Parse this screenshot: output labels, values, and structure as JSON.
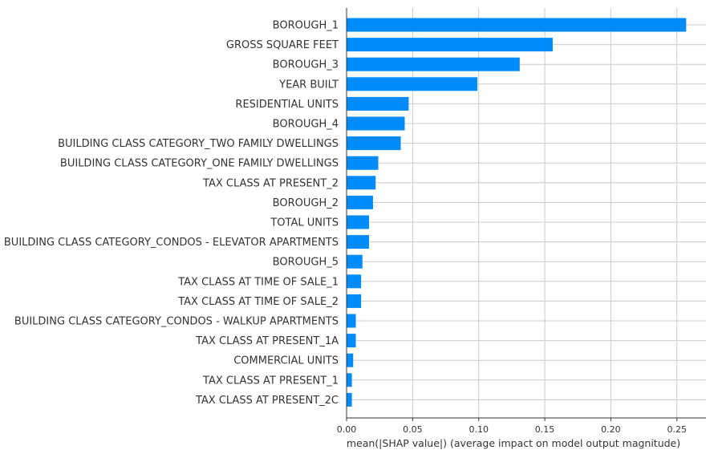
{
  "chart_data": {
    "type": "bar",
    "orientation": "horizontal",
    "xlabel": "mean(|SHAP value|) (average impact on model output magnitude)",
    "xlim": [
      0,
      0.272
    ],
    "xticks": [
      0.0,
      0.05,
      0.1,
      0.15,
      0.2,
      0.25
    ],
    "xtick_labels": [
      "0.00",
      "0.05",
      "0.10",
      "0.15",
      "0.20",
      "0.25"
    ],
    "grid": true,
    "bar_color": "#008bfb",
    "categories": [
      "BOROUGH_1",
      "GROSS SQUARE FEET",
      "BOROUGH_3",
      "YEAR BUILT",
      "RESIDENTIAL UNITS",
      "BOROUGH_4",
      "BUILDING CLASS CATEGORY_TWO FAMILY DWELLINGS",
      "BUILDING CLASS CATEGORY_ONE FAMILY DWELLINGS",
      "TAX CLASS AT PRESENT_2",
      "BOROUGH_2",
      "TOTAL UNITS",
      "BUILDING CLASS CATEGORY_CONDOS - ELEVATOR APARTMENTS",
      "BOROUGH_5",
      "TAX CLASS AT TIME OF SALE_1",
      "TAX CLASS AT TIME OF SALE_2",
      "BUILDING CLASS CATEGORY_CONDOS - WALKUP APARTMENTS",
      "TAX CLASS AT PRESENT_1A",
      "COMMERCIAL UNITS",
      "TAX CLASS AT PRESENT_1",
      "TAX CLASS AT PRESENT_2C"
    ],
    "values": [
      0.257,
      0.156,
      0.131,
      0.099,
      0.047,
      0.044,
      0.041,
      0.024,
      0.022,
      0.02,
      0.017,
      0.017,
      0.012,
      0.011,
      0.011,
      0.007,
      0.007,
      0.005,
      0.004,
      0.004
    ]
  }
}
